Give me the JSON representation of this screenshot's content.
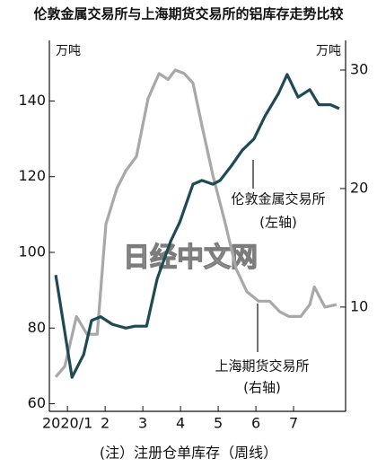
{
  "chart_data": {
    "type": "line",
    "title": "伦敦金属交易所与上海期货交易所的铝库存走势比较",
    "y_unit": "万吨",
    "y2_unit": "万吨",
    "footnote": "(注）注册仓单库存（周线）",
    "watermark": "日经中文网",
    "annotations": [
      "伦敦金属交易所",
      "(左轴)",
      "上海期货交易所",
      "(右轴)"
    ],
    "xlim": [
      0.52,
      8.38
    ],
    "xticks": [
      {
        "value": 1,
        "label": "2020/1"
      },
      2,
      3,
      4,
      5,
      6,
      7
    ],
    "ylim": [
      58,
      156
    ],
    "yticks": [
      60,
      80,
      100,
      120,
      140
    ],
    "y2lim": [
      1.2,
      32.5
    ],
    "y2ticks": [
      10,
      20,
      30
    ],
    "series": [
      {
        "name": "伦敦金属交易所",
        "color": "#1e4a55",
        "x": [
          0.69,
          1.12,
          1.43,
          1.64,
          1.88,
          2.19,
          2.55,
          2.79,
          3.1,
          3.38,
          3.74,
          3.98,
          4.33,
          4.57,
          4.86,
          5.05,
          5.36,
          5.64,
          5.95,
          6.24,
          6.6,
          6.83,
          7.12,
          7.43,
          7.67,
          7.98,
          8.21
        ],
        "values": [
          94,
          67,
          73,
          82,
          83,
          81,
          80,
          80.5,
          80.5,
          93,
          103,
          108,
          118,
          119,
          118,
          119,
          123,
          127,
          130,
          136,
          142,
          147,
          141,
          143,
          139,
          139,
          138
        ]
      },
      {
        "name": "上海期货交易所",
        "color": "#a8a8a8",
        "axis": "y2",
        "x": [
          0.69,
          0.93,
          1.24,
          1.52,
          1.79,
          2.02,
          2.31,
          2.55,
          2.83,
          3.14,
          3.43,
          3.67,
          3.86,
          4.1,
          4.33,
          4.57,
          4.86,
          5.17,
          5.48,
          5.76,
          6.07,
          6.36,
          6.64,
          6.88,
          7.19,
          7.43,
          7.55,
          7.83,
          8.14
        ],
        "values": [
          4.1,
          5.0,
          9.2,
          7.7,
          7.7,
          17,
          20,
          21.5,
          22.7,
          27.6,
          29.7,
          29.2,
          30,
          29.7,
          28.9,
          25.3,
          21.1,
          17.3,
          13.2,
          11.3,
          10.5,
          10.5,
          9.6,
          9.2,
          9.2,
          10.2,
          11.7,
          10,
          10.2
        ]
      }
    ]
  }
}
